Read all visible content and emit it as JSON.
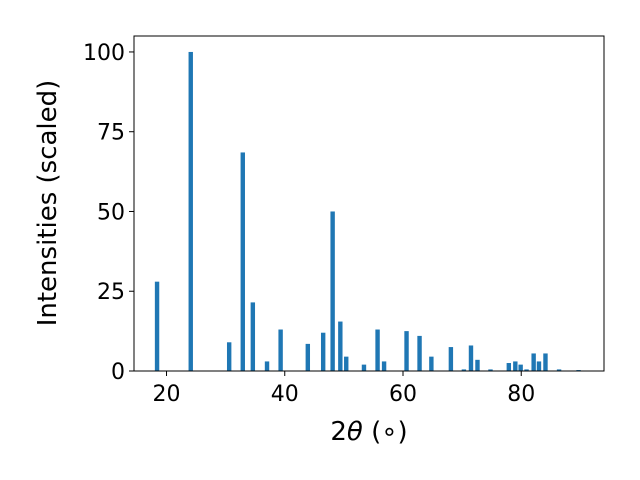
{
  "chart_data": {
    "type": "bar",
    "xlabel": "2θ (∘)",
    "xlabel_main": "2",
    "xlabel_theta": "θ",
    "xlabel_unit": " (∘)",
    "ylabel": "Intensities (scaled)",
    "xlim": [
      14.5,
      94.0
    ],
    "ylim": [
      0,
      105
    ],
    "xticks": [
      20,
      40,
      60,
      80
    ],
    "yticks": [
      0,
      25,
      50,
      75,
      100
    ],
    "bar_color": "#1f77b4",
    "grid": false,
    "x": [
      18.4,
      24.1,
      30.6,
      32.9,
      34.6,
      37.0,
      39.3,
      43.9,
      46.5,
      48.1,
      49.4,
      50.4,
      53.4,
      55.7,
      56.8,
      60.6,
      62.8,
      64.8,
      68.1,
      70.3,
      71.5,
      72.6,
      74.8,
      77.9,
      79.0,
      79.9,
      80.9,
      82.1,
      83.0,
      84.1,
      86.4,
      89.7
    ],
    "values": [
      28,
      100,
      9,
      68.5,
      21.5,
      3,
      13,
      8.5,
      12,
      50,
      15.5,
      4.5,
      2,
      13,
      3,
      12.5,
      11,
      4.5,
      7.5,
      0.5,
      8,
      3.5,
      0.5,
      2.5,
      3,
      2,
      0.5,
      5.5,
      3,
      5.5,
      0.5,
      0.3
    ]
  }
}
